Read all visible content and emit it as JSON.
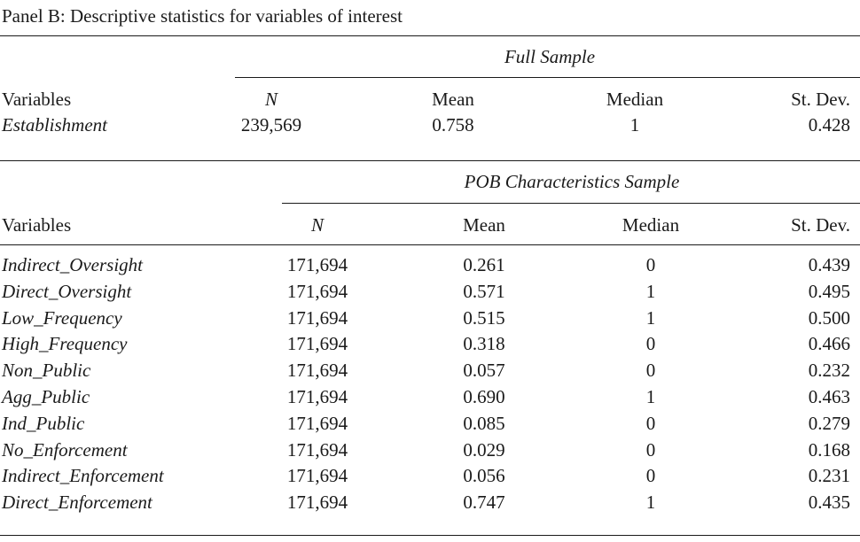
{
  "caption": "Panel B: Descriptive statistics for variables of interest",
  "full": {
    "group_header": "Full Sample",
    "col_variables": "Variables",
    "col_n": "N",
    "col_mean": "Mean",
    "col_median": "Median",
    "col_sd": "St. Dev.",
    "row": {
      "name": "Establishment",
      "n": "239,569",
      "mean": "0.758",
      "median": "1",
      "sd": "0.428"
    }
  },
  "pob": {
    "group_header": "POB Characteristics Sample",
    "col_variables": "Variables",
    "col_n": "N",
    "col_mean": "Mean",
    "col_median": "Median",
    "col_sd": "St. Dev.",
    "rows": [
      {
        "name": "Indirect_Oversight",
        "n": "171,694",
        "mean": "0.261",
        "median": "0",
        "sd": "0.439"
      },
      {
        "name": "Direct_Oversight",
        "n": "171,694",
        "mean": "0.571",
        "median": "1",
        "sd": "0.495"
      },
      {
        "name": "Low_Frequency",
        "n": "171,694",
        "mean": "0.515",
        "median": "1",
        "sd": "0.500"
      },
      {
        "name": "High_Frequency",
        "n": "171,694",
        "mean": "0.318",
        "median": "0",
        "sd": "0.466"
      },
      {
        "name": "Non_Public",
        "n": "171,694",
        "mean": "0.057",
        "median": "0",
        "sd": "0.232"
      },
      {
        "name": "Agg_Public",
        "n": "171,694",
        "mean": "0.690",
        "median": "1",
        "sd": "0.463"
      },
      {
        "name": "Ind_Public",
        "n": "171,694",
        "mean": "0.085",
        "median": "0",
        "sd": "0.279"
      },
      {
        "name": "No_Enforcement",
        "n": "171,694",
        "mean": "0.029",
        "median": "0",
        "sd": "0.168"
      },
      {
        "name": "Indirect_Enforcement",
        "n": "171,694",
        "mean": "0.056",
        "median": "0",
        "sd": "0.231"
      },
      {
        "name": "Direct_Enforcement",
        "n": "171,694",
        "mean": "0.747",
        "median": "1",
        "sd": "0.435"
      }
    ]
  }
}
